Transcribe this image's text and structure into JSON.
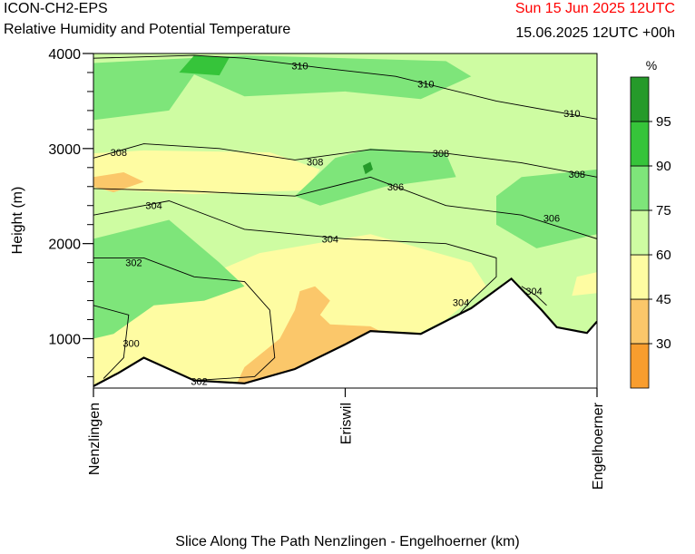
{
  "header": {
    "model": "ICON-CH2-EPS",
    "title": "Relative Humidity and Potential Temperature",
    "valid_date": "Sun 15 Jun 2025 12UTC",
    "run_info": "15.06.2025 12UTC +00h"
  },
  "chart_data": {
    "type": "heatmap",
    "title": "Relative Humidity and Potential Temperature",
    "xlabel": "Slice Along The Path Nenzlingen - Engelhoerner (km)",
    "ylabel": "Height (m)",
    "ylim": [
      480,
      4000
    ],
    "xlim": [
      0,
      1
    ],
    "yticks": [
      1000,
      2000,
      3000,
      4000
    ],
    "y_minor_step": 200,
    "x_tick_labels": [
      {
        "x": 0,
        "label": "Nenzlingen"
      },
      {
        "x": 0.5,
        "label": "Eriswil"
      },
      {
        "x": 1,
        "label": "Engelhoerner"
      }
    ],
    "colorbar": {
      "unit": "%",
      "bounds": [
        15,
        30,
        45,
        60,
        75,
        90,
        95,
        100
      ],
      "labels": [
        "",
        "30",
        "45",
        "60",
        "75",
        "90",
        "95",
        ""
      ],
      "colors": [
        "#f89d2e",
        "#fbc76a",
        "#fefca2",
        "#cefca2",
        "#7ee57a",
        "#36c43a",
        "#259a2a"
      ]
    },
    "terrain": [
      [
        0,
        500
      ],
      [
        0.05,
        640
      ],
      [
        0.1,
        800
      ],
      [
        0.2,
        560
      ],
      [
        0.3,
        530
      ],
      [
        0.4,
        680
      ],
      [
        0.5,
        940
      ],
      [
        0.55,
        1080
      ],
      [
        0.65,
        1050
      ],
      [
        0.75,
        1320
      ],
      [
        0.83,
        1630
      ],
      [
        0.89,
        1300
      ],
      [
        0.92,
        1120
      ],
      [
        0.98,
        1060
      ],
      [
        1,
        1180
      ]
    ],
    "regions": [
      {
        "class": 3,
        "points": [
          [
            0,
            4000
          ],
          [
            1,
            4000
          ],
          [
            1,
            480
          ],
          [
            0,
            480
          ]
        ]
      },
      {
        "class": 2,
        "points": [
          [
            0,
            1600
          ],
          [
            0.15,
            1500
          ],
          [
            0.33,
            1900
          ],
          [
            0.55,
            2100
          ],
          [
            0.75,
            1800
          ],
          [
            0.78,
            1550
          ],
          [
            0.7,
            1200
          ],
          [
            0.55,
            800
          ],
          [
            0.4,
            480
          ],
          [
            0,
            480
          ]
        ]
      },
      {
        "class": 2,
        "points": [
          [
            0,
            2580
          ],
          [
            0.2,
            2520
          ],
          [
            0.42,
            2560
          ],
          [
            0.45,
            2780
          ],
          [
            0.35,
            2960
          ],
          [
            0.1,
            2980
          ],
          [
            0,
            2950
          ]
        ]
      },
      {
        "class": 2,
        "points": [
          [
            0.95,
            1450
          ],
          [
            1,
            1480
          ],
          [
            1,
            1700
          ],
          [
            0.96,
            1650
          ]
        ]
      },
      {
        "class": 1,
        "points": [
          [
            0.3,
            480
          ],
          [
            0.45,
            700
          ],
          [
            0.54,
            950
          ],
          [
            0.58,
            1050
          ],
          [
            0.55,
            1130
          ],
          [
            0.47,
            1150
          ],
          [
            0.45,
            1250
          ],
          [
            0.47,
            1400
          ],
          [
            0.44,
            1550
          ],
          [
            0.41,
            1500
          ],
          [
            0.4,
            1300
          ],
          [
            0.37,
            1000
          ],
          [
            0.3,
            700
          ],
          [
            0.28,
            480
          ]
        ]
      },
      {
        "class": 1,
        "points": [
          [
            0,
            2600
          ],
          [
            0.04,
            2540
          ],
          [
            0.1,
            2650
          ],
          [
            0.06,
            2750
          ],
          [
            0,
            2700
          ]
        ]
      },
      {
        "class": 4,
        "points": [
          [
            0,
            3300
          ],
          [
            0.15,
            3400
          ],
          [
            0.2,
            3780
          ],
          [
            0.3,
            3550
          ],
          [
            0.5,
            3600
          ],
          [
            0.65,
            3520
          ],
          [
            0.75,
            3760
          ],
          [
            0.7,
            3920
          ],
          [
            0.3,
            3980
          ],
          [
            0,
            3900
          ]
        ]
      },
      {
        "class": 4,
        "points": [
          [
            0.45,
            2400
          ],
          [
            0.58,
            2600
          ],
          [
            0.72,
            2700
          ],
          [
            0.7,
            2950
          ],
          [
            0.55,
            3000
          ],
          [
            0.48,
            2900
          ],
          [
            0.44,
            2700
          ],
          [
            0.4,
            2500
          ]
        ]
      },
      {
        "class": 4,
        "points": [
          [
            0.8,
            2200
          ],
          [
            0.88,
            1950
          ],
          [
            1,
            2100
          ],
          [
            1,
            2780
          ],
          [
            0.85,
            2700
          ],
          [
            0.8,
            2500
          ]
        ]
      },
      {
        "class": 4,
        "points": [
          [
            0,
            2050
          ],
          [
            0.15,
            2250
          ],
          [
            0.25,
            1800
          ],
          [
            0.3,
            1550
          ],
          [
            0.22,
            1400
          ],
          [
            0.12,
            1350
          ],
          [
            0.04,
            1050
          ],
          [
            0,
            1000
          ]
        ]
      },
      {
        "class": 5,
        "points": [
          [
            0.17,
            3800
          ],
          [
            0.2,
            3980
          ],
          [
            0.27,
            3960
          ],
          [
            0.25,
            3770
          ]
        ]
      },
      {
        "class": 6,
        "points": [
          [
            0.535,
            2820
          ],
          [
            0.54,
            2730
          ],
          [
            0.555,
            2780
          ],
          [
            0.55,
            2860
          ]
        ]
      }
    ],
    "isolines": [
      {
        "label": "310",
        "points": [
          [
            0,
            3950
          ],
          [
            0.2,
            3980
          ],
          [
            0.3,
            3950
          ],
          [
            0.45,
            3850
          ],
          [
            0.6,
            3760
          ],
          [
            0.8,
            3500
          ],
          [
            1,
            3310
          ]
        ]
      },
      {
        "label": "308",
        "points": [
          [
            0,
            2900
          ],
          [
            0.1,
            3050
          ],
          [
            0.25,
            3000
          ],
          [
            0.4,
            2880
          ],
          [
            0.55,
            2990
          ],
          [
            0.7,
            2950
          ],
          [
            0.85,
            2850
          ],
          [
            1,
            2700
          ]
        ]
      },
      {
        "label": "306",
        "points": [
          [
            0,
            2580
          ],
          [
            0.2,
            2550
          ],
          [
            0.4,
            2500
          ],
          [
            0.55,
            2700
          ],
          [
            0.7,
            2400
          ],
          [
            0.85,
            2300
          ],
          [
            1,
            2050
          ]
        ]
      },
      {
        "label": "304",
        "points": [
          [
            0,
            2300
          ],
          [
            0.15,
            2450
          ],
          [
            0.3,
            2150
          ],
          [
            0.5,
            2050
          ],
          [
            0.7,
            2000
          ],
          [
            0.8,
            1850
          ],
          [
            0.8,
            1650
          ],
          [
            0.75,
            1400
          ],
          [
            0.7,
            1100
          ]
        ]
      },
      {
        "label": "302",
        "points": [
          [
            0,
            1850
          ],
          [
            0.1,
            1850
          ],
          [
            0.2,
            1650
          ],
          [
            0.3,
            1600
          ],
          [
            0.35,
            1300
          ],
          [
            0.36,
            800
          ],
          [
            0.32,
            600
          ],
          [
            0.2,
            560
          ]
        ]
      },
      {
        "label": "304",
        "points": [
          [
            0.85,
            1550
          ],
          [
            0.88,
            1450
          ],
          [
            0.9,
            1350
          ]
        ]
      },
      {
        "label": "300",
        "points": [
          [
            0,
            1350
          ],
          [
            0.07,
            1250
          ],
          [
            0.06,
            800
          ],
          [
            0.02,
            580
          ]
        ]
      }
    ],
    "isoline_labels": [
      {
        "text": "310",
        "x": 0.41,
        "y": 3870
      },
      {
        "text": "310",
        "x": 0.66,
        "y": 3680
      },
      {
        "text": "310",
        "x": 0.95,
        "y": 3370
      },
      {
        "text": "308",
        "x": 0.05,
        "y": 2960
      },
      {
        "text": "308",
        "x": 0.44,
        "y": 2860
      },
      {
        "text": "308",
        "x": 0.69,
        "y": 2950
      },
      {
        "text": "308",
        "x": 0.96,
        "y": 2730
      },
      {
        "text": "306",
        "x": 0.6,
        "y": 2600
      },
      {
        "text": "306",
        "x": 0.91,
        "y": 2270
      },
      {
        "text": "304",
        "x": 0.12,
        "y": 2400
      },
      {
        "text": "304",
        "x": 0.47,
        "y": 2050
      },
      {
        "text": "304",
        "x": 0.73,
        "y": 1380
      },
      {
        "text": "304",
        "x": 0.875,
        "y": 1500
      },
      {
        "text": "302",
        "x": 0.08,
        "y": 1800
      },
      {
        "text": "302",
        "x": 0.21,
        "y": 550
      },
      {
        "text": "300",
        "x": 0.075,
        "y": 950
      }
    ]
  }
}
